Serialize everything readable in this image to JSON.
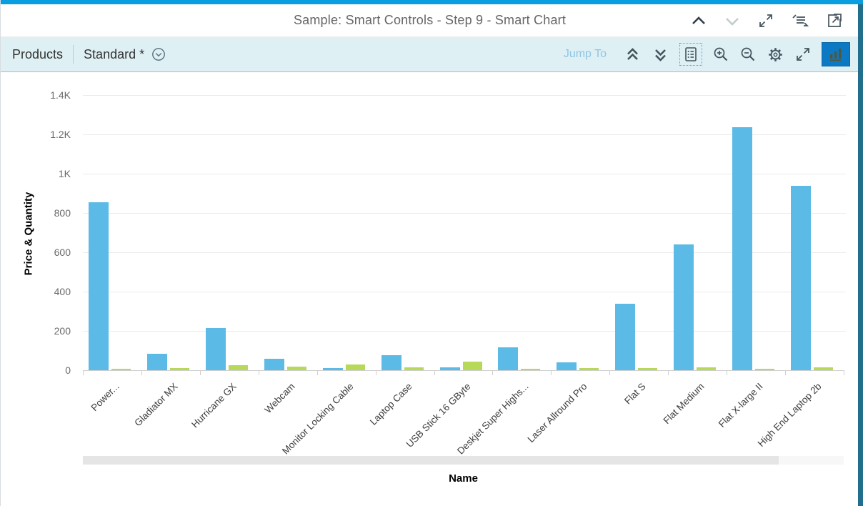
{
  "window": {
    "title": "Sample: Smart Controls - Step 9 - Smart Chart",
    "icons": [
      "navigate-up",
      "navigate-down",
      "maximize",
      "show-code",
      "open-in-new-window"
    ]
  },
  "toolbar": {
    "entity_label": "Products",
    "variant_label": "Standard *",
    "jump_to_label": "Jump To",
    "icons": [
      "collapse-group",
      "expand-group",
      "legend",
      "zoom-in",
      "zoom-out",
      "settings",
      "fullscreen",
      "bar-chart-selected"
    ]
  },
  "chart_data": {
    "type": "bar",
    "categories": [
      "Power...",
      "Gladiator MX",
      "Hurricane GX",
      "Webcam",
      "Monitor Locking Cable",
      "Laptop Case",
      "USB Stick 16 GByte",
      "Deskjet Super Highs...",
      "Laser Allround Pro",
      "Flat S",
      "Flat Medium",
      "Flat X-large II",
      "High End Laptop 2b"
    ],
    "series": [
      {
        "name": "Price",
        "color": "#5cbae6",
        "values": [
          856,
          82,
          216,
          57,
          11,
          76,
          16,
          115,
          40,
          337,
          640,
          1235,
          940
        ]
      },
      {
        "name": "Quantity",
        "color": "#b6d957",
        "values": [
          8,
          10,
          24,
          18,
          30,
          15,
          42,
          8,
          10,
          10,
          15,
          5,
          16
        ]
      }
    ],
    "xlabel": "Name",
    "ylabel": "Price & Quantity",
    "ylim": [
      0,
      1400
    ],
    "ytick_values": [
      0,
      200,
      400,
      600,
      800,
      1000,
      1200,
      1400
    ],
    "ytick_labels": [
      "0",
      "200",
      "400",
      "600",
      "800",
      "1K",
      "1.2K",
      "1.4K"
    ],
    "grid": true,
    "legend": "hidden"
  },
  "colors": {
    "accent_strip": "#099ee0",
    "frame_border": "#226f8d",
    "toolbar_bg": "#dff0f5",
    "title_text": "#666666",
    "selected_button_bg": "#0b79c4",
    "bar_blue": "#5cbae6",
    "bar_green": "#b6d957"
  }
}
